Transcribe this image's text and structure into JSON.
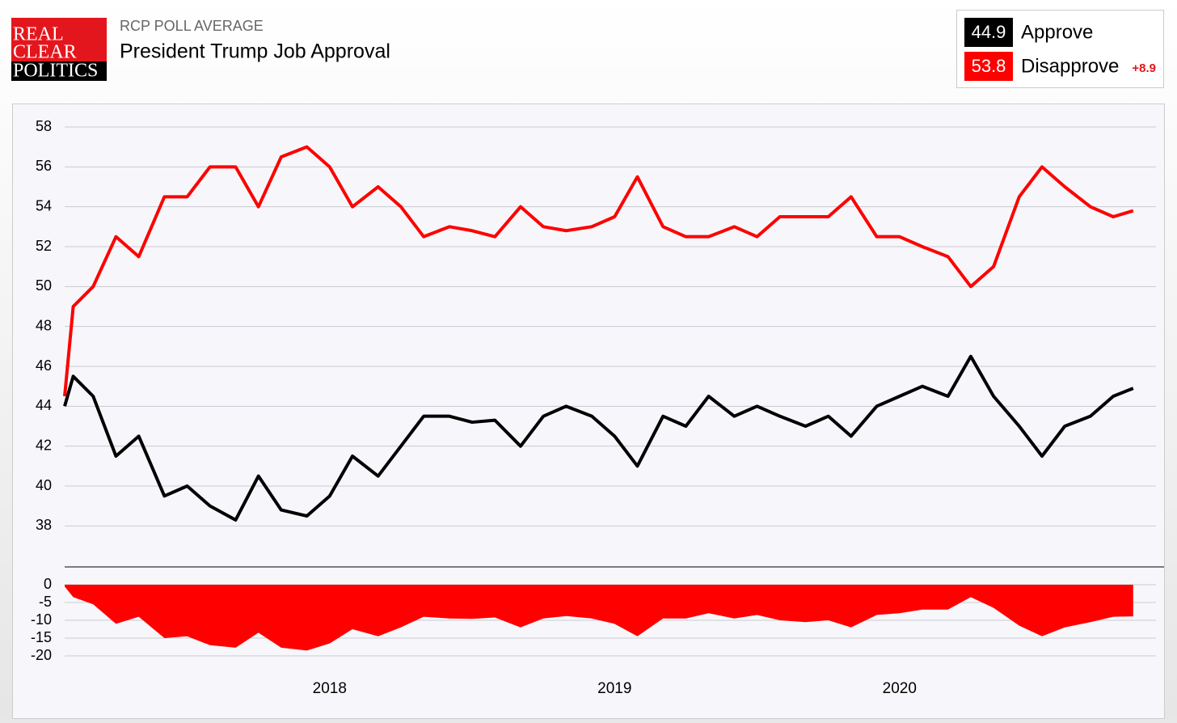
{
  "brand": [
    "REAL",
    "CLEAR",
    "POLITICS"
  ],
  "header": {
    "kicker": "RCP POLL AVERAGE",
    "title": "President Trump Job Approval"
  },
  "legend": {
    "spread": {
      "value": 8.9,
      "label": "+8.9"
    }
  },
  "chart_data": [
    {
      "type": "line",
      "x": [
        2017.07,
        2017.1,
        2017.17,
        2017.25,
        2017.33,
        2017.42,
        2017.5,
        2017.58,
        2017.67,
        2017.75,
        2017.83,
        2017.92,
        2018.0,
        2018.08,
        2018.17,
        2018.25,
        2018.33,
        2018.42,
        2018.5,
        2018.58,
        2018.67,
        2018.75,
        2018.83,
        2018.92,
        2019.0,
        2019.08,
        2019.17,
        2019.25,
        2019.33,
        2019.42,
        2019.5,
        2019.58,
        2019.67,
        2019.75,
        2019.83,
        2019.92,
        2020.0,
        2020.08,
        2020.17,
        2020.25,
        2020.33,
        2020.42,
        2020.5,
        2020.58,
        2020.67,
        2020.75,
        2020.82
      ],
      "series": [
        {
          "name": "Approve",
          "color": "#000000",
          "latest": 44.9,
          "values": [
            44.0,
            45.5,
            44.5,
            41.5,
            42.5,
            39.5,
            40.0,
            39.0,
            38.3,
            40.5,
            38.8,
            38.5,
            39.5,
            41.5,
            40.5,
            42.0,
            43.5,
            43.5,
            43.2,
            43.3,
            42.0,
            43.5,
            44.0,
            43.5,
            42.5,
            41.0,
            43.5,
            43.0,
            44.5,
            43.5,
            44.0,
            43.5,
            43.0,
            43.5,
            42.5,
            44.0,
            44.5,
            45.0,
            44.5,
            46.5,
            44.5,
            43.0,
            41.5,
            43.0,
            43.5,
            44.5,
            44.9
          ]
        },
        {
          "name": "Disapprove",
          "color": "#ff0000",
          "latest": 53.8,
          "values": [
            44.5,
            49.0,
            50.0,
            52.5,
            51.5,
            54.5,
            54.5,
            56.0,
            56.0,
            54.0,
            56.5,
            57.0,
            56.0,
            54.0,
            55.0,
            54.0,
            52.5,
            53.0,
            52.8,
            52.5,
            54.0,
            53.0,
            52.8,
            53.0,
            53.5,
            55.5,
            53.0,
            52.5,
            52.5,
            53.0,
            52.5,
            53.5,
            53.5,
            53.5,
            54.5,
            52.5,
            52.5,
            52.0,
            51.5,
            50.0,
            51.0,
            54.5,
            56.0,
            55.0,
            54.0,
            53.5,
            53.8
          ]
        }
      ],
      "xlim": [
        2017.07,
        2020.9
      ],
      "ylim": [
        37,
        58
      ],
      "yticks": [
        38,
        40,
        42,
        44,
        46,
        48,
        50,
        52,
        54,
        56,
        58
      ],
      "grid": true
    },
    {
      "type": "area",
      "x": [
        2017.07,
        2017.1,
        2017.17,
        2017.25,
        2017.33,
        2017.42,
        2017.5,
        2017.58,
        2017.67,
        2017.75,
        2017.83,
        2017.92,
        2018.0,
        2018.08,
        2018.17,
        2018.25,
        2018.33,
        2018.42,
        2018.5,
        2018.58,
        2018.67,
        2018.75,
        2018.83,
        2018.92,
        2019.0,
        2019.08,
        2019.17,
        2019.25,
        2019.33,
        2019.42,
        2019.5,
        2019.58,
        2019.67,
        2019.75,
        2019.83,
        2019.92,
        2020.0,
        2020.08,
        2020.17,
        2020.25,
        2020.33,
        2020.42,
        2020.5,
        2020.58,
        2020.67,
        2020.75,
        2020.82
      ],
      "values": [
        -0.5,
        -3.5,
        -5.5,
        -11,
        -9,
        -15,
        -14.5,
        -17,
        -17.7,
        -13.5,
        -17.7,
        -18.5,
        -16.5,
        -12.5,
        -14.5,
        -12,
        -9,
        -9.5,
        -9.6,
        -9.2,
        -12,
        -9.5,
        -8.8,
        -9.5,
        -11,
        -14.5,
        -9.5,
        -9.5,
        -8,
        -9.5,
        -8.5,
        -10,
        -10.5,
        -10,
        -12,
        -8.5,
        -8,
        -7,
        -7,
        -3.5,
        -6.5,
        -11.5,
        -14.5,
        -12,
        -10.5,
        -9,
        -8.9
      ],
      "color": "#ff0000",
      "xlim": [
        2017.07,
        2020.9
      ],
      "ylim": [
        -20,
        0
      ],
      "yticks": [
        0,
        -5,
        -10,
        -15,
        -20
      ],
      "xticks": [
        2018,
        2019,
        2020
      ],
      "grid": true
    }
  ]
}
